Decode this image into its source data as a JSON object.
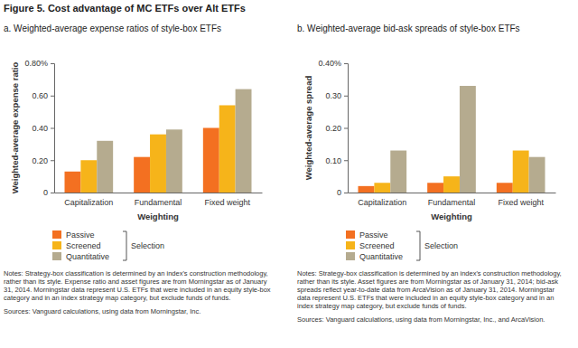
{
  "title": "Figure 5. Cost advantage of MC ETFs over Alt ETFs",
  "chart_data": [
    {
      "type": "bar",
      "title": "a. Weighted-average expense ratios of style-box ETFs",
      "y_label": "Weighted-average expense ratio",
      "x_label": "Weighting",
      "legend_title": "Selection",
      "legend": "bottom",
      "grid": false,
      "categories": [
        "Capitalization",
        "Fundamental",
        "Fixed weight"
      ],
      "series": [
        {
          "name": "Passive",
          "color": "#f37021",
          "values": [
            0.13,
            0.22,
            0.4
          ]
        },
        {
          "name": "Screened",
          "color": "#f6b41a",
          "values": [
            0.2,
            0.36,
            0.54
          ]
        },
        {
          "name": "Quantitative",
          "color": "#b5ab8f",
          "values": [
            0.32,
            0.39,
            0.64
          ]
        }
      ],
      "ylim": [
        0,
        0.8
      ],
      "yticks": [
        0,
        {
          "value": 0.2,
          "label": "0.20"
        },
        {
          "value": 0.4,
          "label": "0.40"
        },
        {
          "value": 0.6,
          "label": "0.60"
        },
        {
          "value": 0.8,
          "label": "0.80%"
        }
      ],
      "notes": "Notes: Strategy-box classification is determined by an index's construction methodology, rather than its style. Expense ratio and asset figures are from Morningstar as of January 31, 2014. Morningstar data represent U.S. ETFs that were included in an equity style-box category and in an index strategy map category, but exclude funds of funds.",
      "sources": "Sources: Vanguard calculations, using data from Morningstar, Inc."
    },
    {
      "type": "bar",
      "title": "b. Weighted-average bid-ask spreads of style-box ETFs",
      "y_label": "Weighted-average spread",
      "x_label": "Weighting",
      "legend_title": "Selection",
      "legend": "bottom",
      "grid": false,
      "categories": [
        "Capitalization",
        "Fundamental",
        "Fixed weight"
      ],
      "series": [
        {
          "name": "Passive",
          "color": "#f37021",
          "values": [
            0.02,
            0.03,
            0.03
          ]
        },
        {
          "name": "Screened",
          "color": "#f6b41a",
          "values": [
            0.03,
            0.05,
            0.13
          ]
        },
        {
          "name": "Quantitative",
          "color": "#b5ab8f",
          "values": [
            0.13,
            0.33,
            0.11
          ]
        }
      ],
      "ylim": [
        0,
        0.4
      ],
      "yticks": [
        0,
        {
          "value": 0.1,
          "label": "0.10"
        },
        {
          "value": 0.2,
          "label": "0.20"
        },
        {
          "value": 0.3,
          "label": "0.30"
        },
        {
          "value": 0.4,
          "label": "0.40%"
        }
      ],
      "notes": "Notes: Strategy-box classification is determined by an index's construction methodology, rather than its style. Asset figures are from Morningstar as of January 31, 2014; bid-ask spreads reflect year-to-date data from ArcaVision as of January 31, 2014. Morningstar data represent U.S. ETFs that were included in an equity style-box category and in an index strategy map category, but exclude funds of funds.",
      "sources": "Sources: Vanguard calculations, using data from Morningstar, Inc., and ArcaVision."
    }
  ]
}
